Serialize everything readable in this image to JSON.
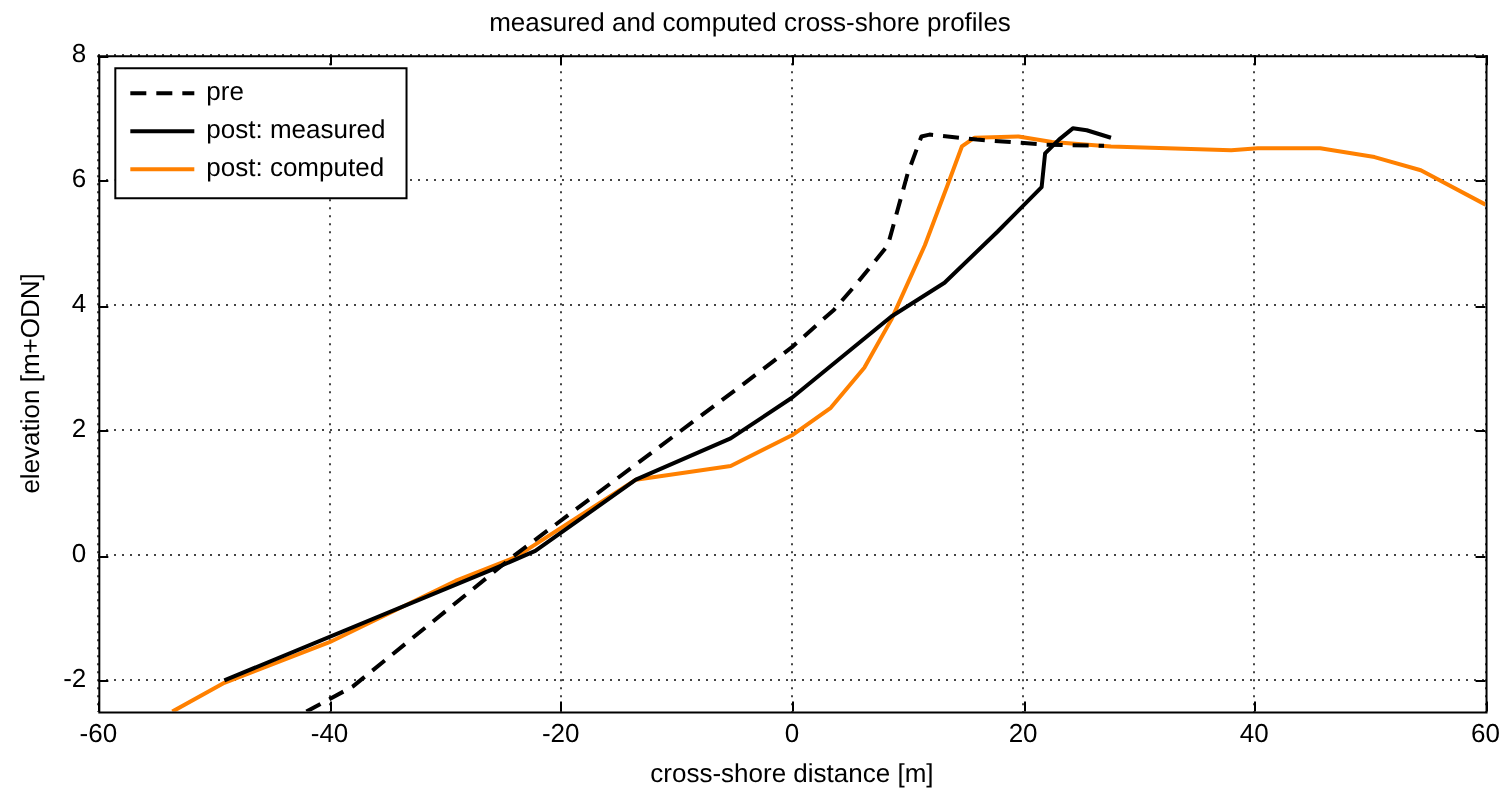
{
  "chart_data": {
    "type": "line",
    "title": "measured and computed cross-shore profiles",
    "xlabel": "cross-shore distance [m]",
    "ylabel": "elevation [m+ODN]",
    "xlim": [
      -60,
      60
    ],
    "xticks": [
      -60,
      -40,
      -20,
      0,
      20,
      40,
      60
    ],
    "ylim": [
      -2.5,
      8
    ],
    "yticks": [
      -2,
      0,
      2,
      4,
      6,
      8
    ],
    "grid": true,
    "legend": "top left",
    "marker": "none",
    "series": [
      {
        "name": "pre",
        "color": "#000000",
        "line_style": "dashed",
        "x": [
          -42,
          -38,
          -24,
          -4.2,
          0,
          3.65,
          5.67,
          8.3,
          10.0,
          11.2,
          11.9,
          16,
          21.9,
          27
        ],
        "values": [
          -2.5,
          -2.1,
          0,
          2.74,
          3.33,
          3.93,
          4.36,
          4.96,
          6.1,
          6.7,
          6.73,
          6.65,
          6.57,
          6.55
        ]
      },
      {
        "name": "post: measured",
        "color": "#000000",
        "line_style": "solid",
        "x": [
          -49.1,
          -26.2,
          -22.2,
          -13.5,
          -5.3,
          0,
          8.6,
          13.2,
          17.8,
          21.6,
          21.9,
          23.1,
          24.3,
          25.5,
          27.6
        ],
        "values": [
          -2.0,
          -0.25,
          0.07,
          1.21,
          1.87,
          2.52,
          3.82,
          4.36,
          5.18,
          5.89,
          6.43,
          6.65,
          6.83,
          6.8,
          6.68
        ]
      },
      {
        "name": "post: computed",
        "color": "#ff8000",
        "line_style": "solid",
        "x": [
          -53.6,
          -49.1,
          -40,
          -29.1,
          -23.9,
          -13.5,
          -5.3,
          0,
          3.36,
          6.26,
          8.6,
          11.5,
          13.5,
          14.7,
          15.8,
          19.6,
          22.5,
          27.6,
          38.0,
          40.3,
          45.7,
          50.4,
          54.4,
          60
        ],
        "values": [
          -2.5,
          -2.04,
          -1.39,
          -0.41,
          -0.03,
          1.21,
          1.43,
          1.92,
          2.36,
          3.0,
          3.77,
          4.96,
          5.94,
          6.54,
          6.68,
          6.7,
          6.61,
          6.54,
          6.48,
          6.51,
          6.51,
          6.37,
          6.16,
          5.61
        ]
      }
    ]
  }
}
